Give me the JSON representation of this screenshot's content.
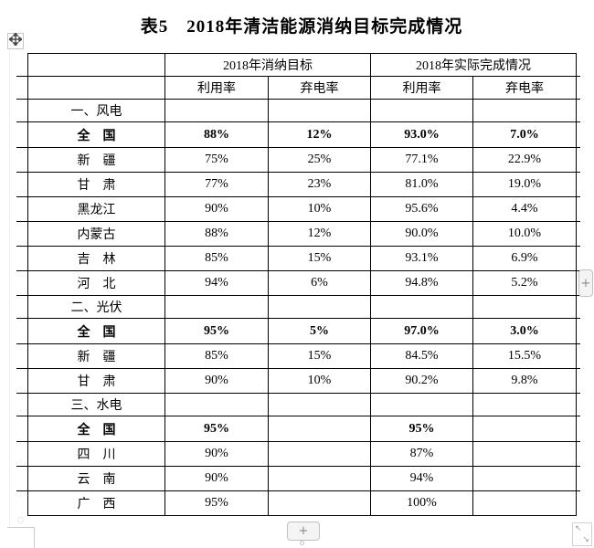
{
  "title": "表5　2018年清洁能源消纳目标完成情况",
  "table": {
    "col_groups": [
      {
        "label": "2018年消纳目标",
        "span": 2
      },
      {
        "label": "2018年实际完成情况",
        "span": 2
      }
    ],
    "sub_headers": [
      "利用率",
      "弃电率",
      "利用率",
      "弃电率"
    ],
    "sections": [
      {
        "label": "一、风电",
        "rows": [
          {
            "name": "全　国",
            "bold": true,
            "values": [
              "88%",
              "12%",
              "93.0%",
              "7.0%"
            ]
          },
          {
            "name": "新　疆",
            "bold": false,
            "values": [
              "75%",
              "25%",
              "77.1%",
              "22.9%"
            ]
          },
          {
            "name": "甘　肃",
            "bold": false,
            "values": [
              "77%",
              "23%",
              "81.0%",
              "19.0%"
            ]
          },
          {
            "name": "黑龙江",
            "bold": false,
            "values": [
              "90%",
              "10%",
              "95.6%",
              "4.4%"
            ]
          },
          {
            "name": "内蒙古",
            "bold": false,
            "values": [
              "88%",
              "12%",
              "90.0%",
              "10.0%"
            ]
          },
          {
            "name": "吉　林",
            "bold": false,
            "values": [
              "85%",
              "15%",
              "93.1%",
              "6.9%"
            ]
          },
          {
            "name": "河　北",
            "bold": false,
            "values": [
              "94%",
              "6%",
              "94.8%",
              "5.2%"
            ]
          }
        ]
      },
      {
        "label": "二、光伏",
        "rows": [
          {
            "name": "全　国",
            "bold": true,
            "values": [
              "95%",
              "5%",
              "97.0%",
              "3.0%"
            ]
          },
          {
            "name": "新　疆",
            "bold": false,
            "values": [
              "85%",
              "15%",
              "84.5%",
              "15.5%"
            ]
          },
          {
            "name": "甘　肃",
            "bold": false,
            "values": [
              "90%",
              "10%",
              "90.2%",
              "9.8%"
            ]
          }
        ]
      },
      {
        "label": "三、水电",
        "rows": [
          {
            "name": "全　国",
            "bold": true,
            "values": [
              "95%",
              "",
              "95%",
              ""
            ]
          },
          {
            "name": "四　川",
            "bold": false,
            "values": [
              "90%",
              "",
              "87%",
              ""
            ]
          },
          {
            "name": "云　南",
            "bold": false,
            "values": [
              "90%",
              "",
              "94%",
              ""
            ]
          },
          {
            "name": "广　西",
            "bold": false,
            "values": [
              "95%",
              "",
              "100%",
              ""
            ]
          }
        ]
      }
    ]
  },
  "controls": {
    "add_row_label": "+",
    "add_column_label": "+",
    "move_handle_icon": "move-cross",
    "resize_nw_glyph": "↖",
    "resize_se_glyph": "↘"
  }
}
